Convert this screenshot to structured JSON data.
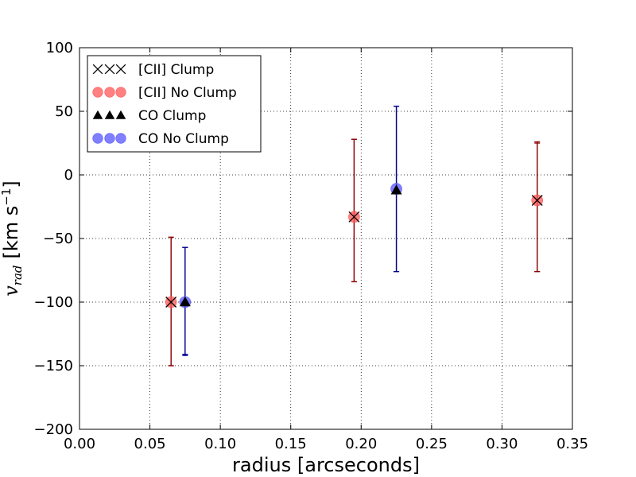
{
  "chart_data": {
    "type": "scatter",
    "title": "",
    "xlabel": "radius [arcseconds]",
    "ylabel_symbol": "v",
    "ylabel_subscript": "rad",
    "ylabel_units": "[km s",
    "ylabel_exp": "−1",
    "ylabel_close": "]",
    "xlim": [
      0.0,
      0.35
    ],
    "ylim": [
      -200,
      100
    ],
    "xticks": [
      0.0,
      0.05,
      0.1,
      0.15,
      0.2,
      0.25,
      0.3,
      0.35
    ],
    "xtick_labels": [
      "0.00",
      "0.05",
      "0.10",
      "0.15",
      "0.20",
      "0.25",
      "0.30",
      "0.35"
    ],
    "yticks": [
      -200,
      -150,
      -100,
      -50,
      0,
      50,
      100
    ],
    "ytick_labels": [
      "−200",
      "−150",
      "−100",
      "−50",
      "0",
      "50",
      "100"
    ],
    "grid": true,
    "legend_position": "top-left",
    "series": [
      {
        "name": "[CII] Clump",
        "marker": "x",
        "color": "#000000",
        "ecolor": "#8b0000",
        "points": [
          {
            "x": 0.065,
            "y": -100,
            "yerr_low": -150,
            "yerr_high": -49
          },
          {
            "x": 0.195,
            "y": -33,
            "yerr_low": -84,
            "yerr_high": 28
          },
          {
            "x": 0.325,
            "y": -20,
            "yerr_low": -76,
            "yerr_high": 26
          }
        ]
      },
      {
        "name": "[CII] No Clump",
        "marker": "circle",
        "color": "#ff5555",
        "ecolor": "#8b0000",
        "points": [
          {
            "x": 0.065,
            "y": -100,
            "yerr_low": -150,
            "yerr_high": -49
          },
          {
            "x": 0.195,
            "y": -33,
            "yerr_low": -84,
            "yerr_high": 28
          },
          {
            "x": 0.325,
            "y": -20,
            "yerr_low": -76,
            "yerr_high": 25
          }
        ]
      },
      {
        "name": "CO Clump",
        "marker": "triangle",
        "color": "#000000",
        "ecolor": "#00008b",
        "points": [
          {
            "x": 0.075,
            "y": -100,
            "yerr_low": -141,
            "yerr_high": -57
          },
          {
            "x": 0.225,
            "y": -12,
            "yerr_low": -76,
            "yerr_high": 54
          }
        ]
      },
      {
        "name": "CO No Clump",
        "marker": "circle",
        "color": "#5555ff",
        "ecolor": "#00008b",
        "points": [
          {
            "x": 0.075,
            "y": -100,
            "yerr_low": -142,
            "yerr_high": -57
          },
          {
            "x": 0.225,
            "y": -11,
            "yerr_low": -76,
            "yerr_high": 54
          }
        ]
      }
    ]
  }
}
